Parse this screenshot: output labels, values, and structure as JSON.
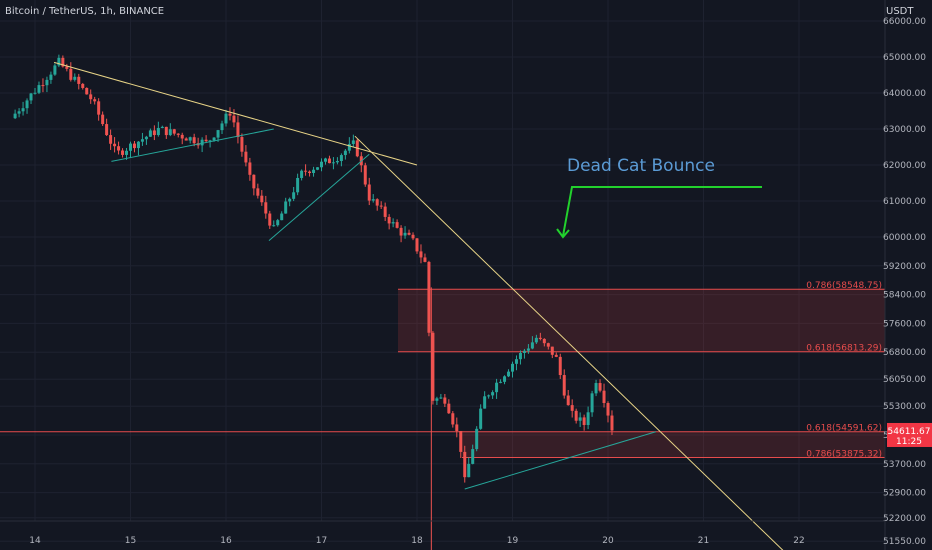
{
  "header": {
    "symbol_title": "Bitcoin / TetherUS, 1h, BINANCE",
    "currency": "USDT"
  },
  "annotation": {
    "text": "Dead Cat Bounce"
  },
  "colors": {
    "bg": "#131722",
    "up": "#26a69a",
    "down": "#ef5350",
    "trend": "#e8d487",
    "arrow": "#22d12d",
    "fib": "#e74c4c",
    "grid": "#1e2230",
    "axis_text": "#b2b5be"
  },
  "chart_data": {
    "type": "candlestick",
    "title": "Bitcoin / TetherUS, 1h, BINANCE",
    "ylim": [
      51150,
      66500
    ],
    "price_ticks": [
      "66000.00",
      "65000.00",
      "64000.00",
      "63000.00",
      "62000.00",
      "61000.00",
      "60000.00",
      "59200.00",
      "58400.00",
      "57600.00",
      "56800.00",
      "56050.00",
      "55300.00",
      "54500.00",
      "53700.00",
      "52900.00",
      "52200.00",
      "51550.00"
    ],
    "date_ticks": [
      {
        "label": "14",
        "day": 14
      },
      {
        "label": "15",
        "day": 15
      },
      {
        "label": "16",
        "day": 16
      },
      {
        "label": "17",
        "day": 17
      },
      {
        "label": "18",
        "day": 18
      },
      {
        "label": "19",
        "day": 19
      },
      {
        "label": "20",
        "day": 20
      },
      {
        "label": "21",
        "day": 21
      },
      {
        "label": "22",
        "day": 22
      }
    ],
    "last_price": {
      "value": "54611.67",
      "time": "11:25"
    },
    "fib_levels": [
      {
        "label": "0.786(58548.75)",
        "value": 58548.75
      },
      {
        "label": "0.618(56813.29)",
        "value": 56813.29
      },
      {
        "label": "0.618(54591.62)",
        "value": 54591.62
      },
      {
        "label": "0.786(53875.32)",
        "value": 53875.32
      }
    ],
    "trendlines": [
      {
        "from": [
          14.2,
          64850
        ],
        "to": [
          18.0,
          62000
        ]
      },
      {
        "from": [
          17.35,
          62800
        ],
        "to": [
          21.85,
          51250
        ]
      },
      {
        "from": [
          14.8,
          62100
        ],
        "to": [
          16.5,
          63000
        ]
      },
      {
        "from": [
          16.45,
          59900
        ],
        "to": [
          17.5,
          62300
        ]
      },
      {
        "from": [
          18.5,
          53000
        ],
        "to": [
          20.5,
          54590
        ]
      }
    ],
    "key_points": [
      {
        "day": 13.75,
        "price": 63300
      },
      {
        "day": 14.25,
        "price": 64850
      },
      {
        "day": 14.6,
        "price": 63800
      },
      {
        "day": 14.85,
        "price": 62300
      },
      {
        "day": 15.3,
        "price": 63000
      },
      {
        "day": 15.8,
        "price": 62600
      },
      {
        "day": 16.05,
        "price": 63500
      },
      {
        "day": 16.25,
        "price": 61600
      },
      {
        "day": 16.5,
        "price": 60200
      },
      {
        "day": 16.8,
        "price": 61800
      },
      {
        "day": 17.15,
        "price": 62200
      },
      {
        "day": 17.35,
        "price": 62600
      },
      {
        "day": 17.5,
        "price": 61100
      },
      {
        "day": 17.8,
        "price": 60200
      },
      {
        "day": 17.95,
        "price": 59900
      },
      {
        "day": 18.1,
        "price": 59200
      },
      {
        "day": 18.15,
        "price": 55500
      },
      {
        "day": 18.3,
        "price": 55500
      },
      {
        "day": 18.45,
        "price": 54300
      },
      {
        "day": 18.5,
        "price": 53200
      },
      {
        "day": 18.7,
        "price": 55500
      },
      {
        "day": 19.0,
        "price": 56500
      },
      {
        "day": 19.25,
        "price": 57200
      },
      {
        "day": 19.45,
        "price": 56700
      },
      {
        "day": 19.6,
        "price": 55100
      },
      {
        "day": 19.75,
        "price": 54800
      },
      {
        "day": 19.88,
        "price": 56100
      },
      {
        "day": 19.95,
        "price": 55600
      },
      {
        "day": 20.05,
        "price": 54611.67
      }
    ]
  }
}
